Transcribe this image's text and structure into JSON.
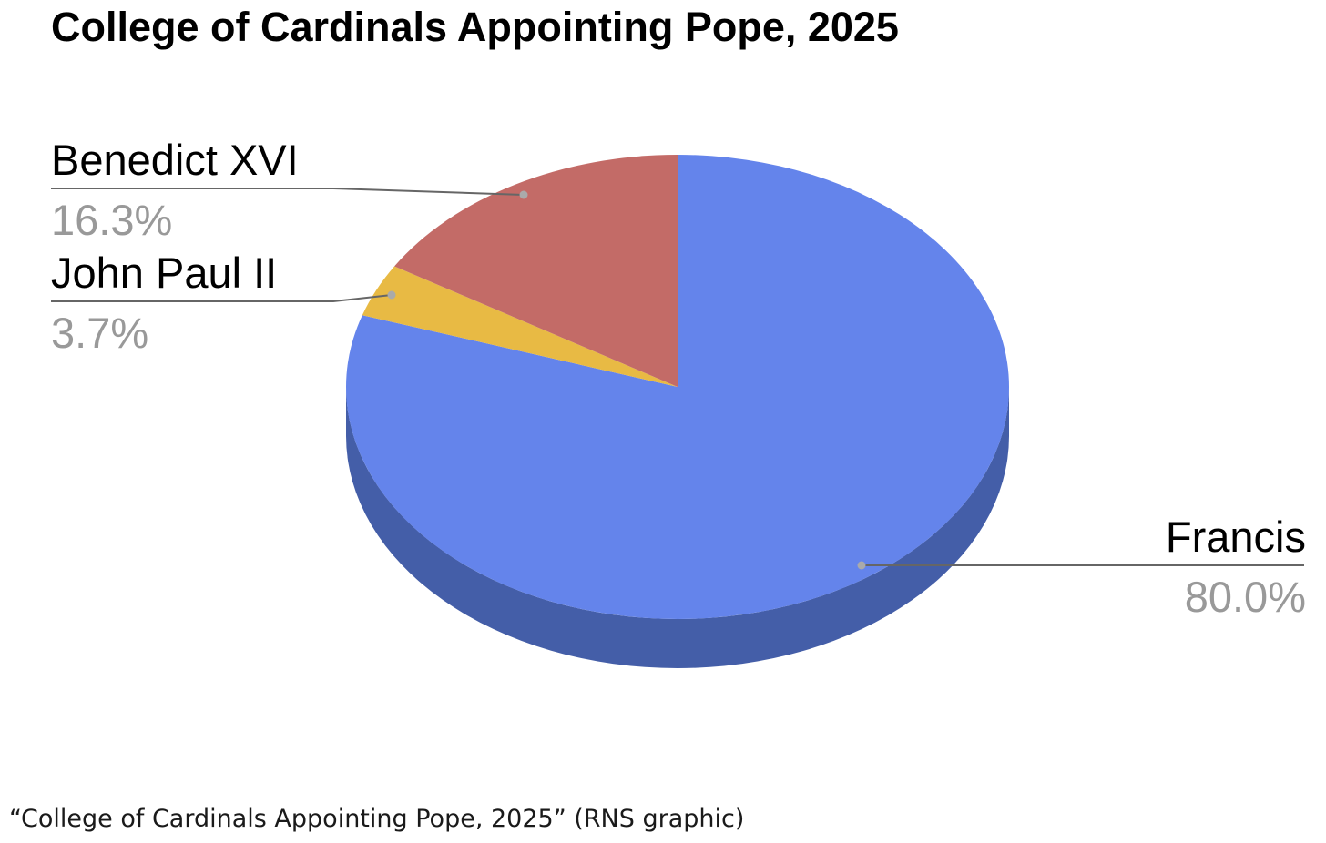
{
  "chart_data": {
    "type": "pie",
    "title": "College of Cardinals Appointing Pope, 2025",
    "three_d": true,
    "slices": [
      {
        "label": "Francis",
        "value": 80.0,
        "value_label": "80.0%",
        "color": "#6484eb",
        "side_color": "#445ea8"
      },
      {
        "label": "John Paul II",
        "value": 3.7,
        "value_label": "3.7%",
        "color": "#e8ba44",
        "side_color": "#a88630"
      },
      {
        "label": "Benedict XVI",
        "value": 16.3,
        "value_label": "16.3%",
        "color": "#c36b67",
        "side_color": "#8c4b48"
      }
    ],
    "label_color": "#000000",
    "value_color": "#999999",
    "leader_color": "#666666"
  },
  "caption": "“College of Cardinals Appointing Pope, 2025” (RNS graphic)"
}
